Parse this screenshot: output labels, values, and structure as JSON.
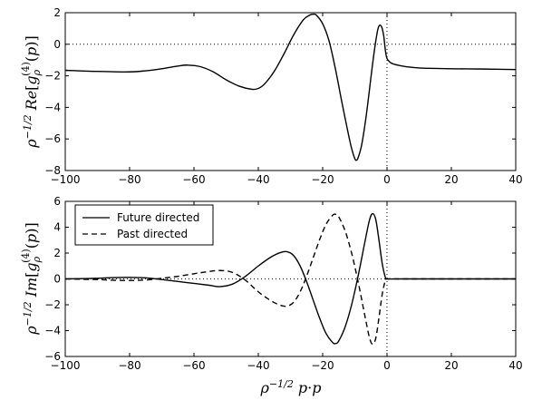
{
  "chart_data": [
    {
      "type": "line",
      "xlim": [
        -100,
        40
      ],
      "ylim": [
        -8,
        2
      ],
      "xticks": [
        -100,
        -80,
        -60,
        -40,
        -20,
        0,
        20,
        40
      ],
      "xtick_labels": [
        "−100",
        "−80",
        "−60",
        "−40",
        "−20",
        "0",
        "20",
        "40"
      ],
      "yticks": [
        -8,
        -6,
        -4,
        -2,
        0,
        2
      ],
      "ytick_labels": [
        "−8",
        "−6",
        "−4",
        "−2",
        "0",
        "2"
      ],
      "ylabel": "ρ⁻¹ᐟ² Re[gρ⁽⁴⁾(p)]",
      "reference_lines": {
        "y": 0,
        "x": 0,
        "style": "dotted"
      },
      "series": [
        {
          "style": "solid",
          "x": [
            -100,
            -90,
            -80,
            -75,
            -70,
            -65,
            -62,
            -58,
            -54,
            -50,
            -46,
            -42,
            -40,
            -38,
            -35,
            -32,
            -29,
            -26,
            -24,
            -23,
            -22,
            -20,
            -18,
            -16,
            -14,
            -12,
            -11,
            -10,
            -9.5,
            -9,
            -8,
            -7,
            -6,
            -5,
            -4,
            -3,
            -2.5,
            -2,
            -1.5,
            -1,
            -0.5,
            0,
            1,
            2,
            4,
            6,
            10,
            20,
            30,
            40
          ],
          "y": [
            -1.65,
            -1.72,
            -1.75,
            -1.68,
            -1.55,
            -1.38,
            -1.32,
            -1.42,
            -1.75,
            -2.25,
            -2.65,
            -2.85,
            -2.8,
            -2.5,
            -1.7,
            -0.6,
            0.6,
            1.55,
            1.85,
            1.9,
            1.85,
            1.3,
            0.2,
            -1.6,
            -3.7,
            -5.7,
            -6.6,
            -7.25,
            -7.35,
            -7.2,
            -6.5,
            -5.3,
            -3.8,
            -2.1,
            -0.5,
            0.8,
            1.15,
            1.2,
            1.0,
            0.5,
            -0.4,
            -0.9,
            -1.15,
            -1.25,
            -1.35,
            -1.42,
            -1.5,
            -1.55,
            -1.57,
            -1.6
          ]
        }
      ]
    },
    {
      "type": "line",
      "xlim": [
        -100,
        40
      ],
      "ylim": [
        -6,
        6
      ],
      "xticks": [
        -100,
        -80,
        -60,
        -40,
        -20,
        0,
        20,
        40
      ],
      "xtick_labels": [
        "−100",
        "−80",
        "−60",
        "−40",
        "−20",
        "0",
        "20",
        "40"
      ],
      "yticks": [
        -6,
        -4,
        -2,
        0,
        2,
        4,
        6
      ],
      "ytick_labels": [
        "−6",
        "−4",
        "−2",
        "0",
        "2",
        "4",
        "6"
      ],
      "ylabel": "ρ⁻¹ᐟ² Im[gρ⁽⁴⁾(p)]",
      "xlabel": "ρ⁻¹ᐟ² p·p",
      "reference_lines": {
        "y": 0,
        "x": 0,
        "style": "dotted"
      },
      "legend_position": "top-left",
      "series": [
        {
          "name": "Future directed",
          "style": "solid",
          "x": [
            -100,
            -90,
            -85,
            -80,
            -75,
            -70,
            -65,
            -60,
            -55,
            -52,
            -48,
            -44,
            -40,
            -36,
            -33,
            -31,
            -29,
            -27,
            -25,
            -23,
            -21,
            -19,
            -17,
            -16,
            -15,
            -13,
            -11,
            -9,
            -7,
            -5.5,
            -4.5,
            -3.5,
            -2.5,
            -1.5,
            -0.5,
            0,
            5,
            20,
            40
          ],
          "y": [
            0,
            0.05,
            0.1,
            0.12,
            0.08,
            -0.05,
            -0.2,
            -0.35,
            -0.5,
            -0.6,
            -0.4,
            0.2,
            1.0,
            1.7,
            2.05,
            2.1,
            1.8,
            1.0,
            -0.2,
            -1.6,
            -3.0,
            -4.2,
            -4.9,
            -5.0,
            -4.8,
            -3.7,
            -2.0,
            0.2,
            2.7,
            4.5,
            5.05,
            4.6,
            3.0,
            1.2,
            0.1,
            0,
            0,
            0,
            0
          ]
        },
        {
          "name": "Past directed",
          "style": "dashed",
          "x": [
            -100,
            -90,
            -85,
            -80,
            -75,
            -70,
            -65,
            -60,
            -56,
            -52,
            -48,
            -44,
            -40,
            -36,
            -33,
            -31,
            -29,
            -27,
            -25,
            -23,
            -21,
            -19,
            -17,
            -16,
            -15,
            -13,
            -11,
            -9,
            -7,
            -5.5,
            -4.5,
            -3.5,
            -2.5,
            -1.5,
            -0.5,
            0,
            5,
            20,
            40
          ],
          "y": [
            0,
            -0.05,
            -0.1,
            -0.12,
            -0.08,
            0.05,
            0.2,
            0.4,
            0.55,
            0.65,
            0.5,
            -0.1,
            -1.0,
            -1.7,
            -2.05,
            -2.1,
            -1.8,
            -1.0,
            0.2,
            1.6,
            3.0,
            4.2,
            4.9,
            5.0,
            4.8,
            3.7,
            2.0,
            -0.2,
            -2.7,
            -4.5,
            -5.05,
            -4.6,
            -3.0,
            -1.2,
            -0.1,
            0,
            0,
            0,
            0
          ]
        }
      ]
    }
  ]
}
